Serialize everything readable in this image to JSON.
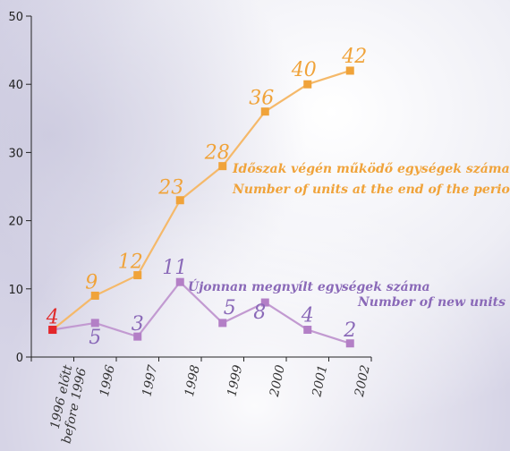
{
  "chart_data": {
    "type": "line",
    "categories": [
      "1996 előtt\nbefore 1996",
      "1996",
      "1997",
      "1998",
      "1999",
      "2000",
      "2001",
      "2002"
    ],
    "ylim": [
      0,
      50
    ],
    "yticks": [
      0,
      10,
      20,
      30,
      40,
      50
    ],
    "grid": false,
    "series": [
      {
        "name": "Időszak végén működő egységek száma / Number of units at the end of the period",
        "color": "#f5b96a",
        "marker_color": "#f0a33a",
        "first_marker_color": "#e3262a",
        "values": [
          4,
          9,
          12,
          23,
          28,
          36,
          40,
          42
        ]
      },
      {
        "name": "Újonnan megnyílt egységek száma / Number of new units",
        "color": "#c29ad1",
        "marker_color": "#b37fc6",
        "first_marker_color": "#e3262a",
        "values": [
          4,
          5,
          3,
          11,
          5,
          8,
          4,
          2
        ]
      }
    ],
    "legend": {
      "total_hu": "Időszak végén működő egységek száma",
      "total_en": "Number of units at the end of the period",
      "new_hu": "Újonnan megnyílt egységek száma",
      "new_en": "Number of new units"
    },
    "shared_first_label": "4"
  }
}
